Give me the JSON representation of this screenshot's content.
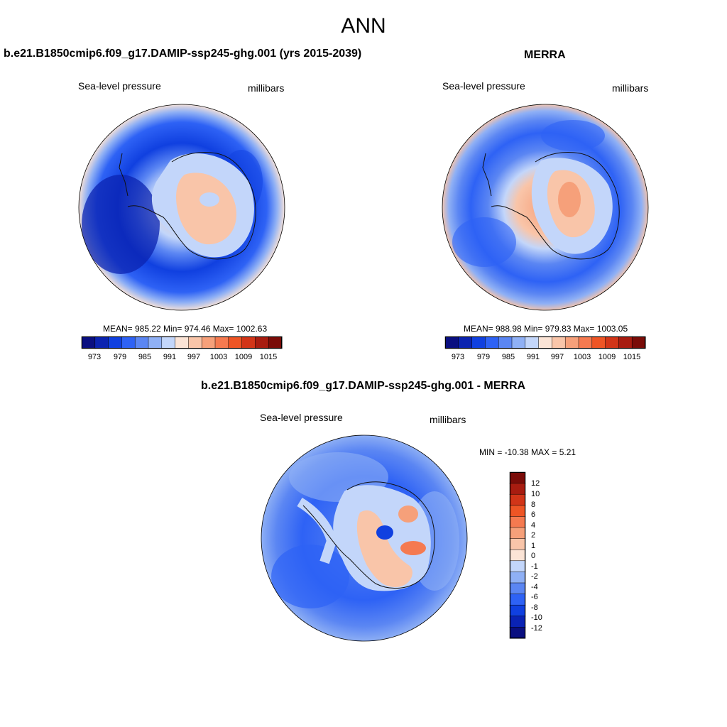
{
  "title": "ANN",
  "colors": {
    "abs_scale": [
      "#0a0f80",
      "#0b23b0",
      "#1040e0",
      "#2e62f5",
      "#5b86f3",
      "#8fb0f5",
      "#c3d6fa",
      "#fbe4d6",
      "#f9c5a9",
      "#f6a07a",
      "#f57a50",
      "#ee5525",
      "#d23518",
      "#a81c10",
      "#7a0c08"
    ],
    "diff_scale": [
      "#0a0f80",
      "#0a23b5",
      "#1040e0",
      "#2e62f5",
      "#5b86f3",
      "#8fb0f5",
      "#c3d6fa",
      "#fbe4d6",
      "#f9c5a9",
      "#f6a07a",
      "#f57a50",
      "#ee5525",
      "#d23518",
      "#a81c10",
      "#7a0c08"
    ]
  },
  "panel_left": {
    "title": "b.e21.B1850cmip6.f09_g17.DAMIP-ssp245-ghg.001 (yrs 2015-2039)",
    "variable": "Sea-level pressure",
    "units": "millibars",
    "stats": "MEAN= 985.22  Min= 974.46  Max= 1002.63",
    "colorbar_labels": [
      "973",
      "979",
      "985",
      "991",
      "997",
      "1003",
      "1009",
      "1015"
    ]
  },
  "panel_right": {
    "title": "MERRA",
    "variable": "Sea-level pressure",
    "units": "millibars",
    "stats": "MEAN= 988.98  Min= 979.83  Max= 1003.05",
    "colorbar_labels": [
      "973",
      "979",
      "985",
      "991",
      "997",
      "1003",
      "1009",
      "1015"
    ]
  },
  "panel_diff": {
    "title": "b.e21.B1850cmip6.f09_g17.DAMIP-ssp245-ghg.001 - MERRA",
    "variable": "Sea-level pressure",
    "units": "millibars",
    "stats": "MIN = -10.38 MAX =   5.21",
    "colorbar_labels": [
      "12",
      "10",
      "8",
      "6",
      "4",
      "2",
      "1",
      "0",
      "-1",
      "-2",
      "-4",
      "-6",
      "-8",
      "-10",
      "-12"
    ]
  }
}
